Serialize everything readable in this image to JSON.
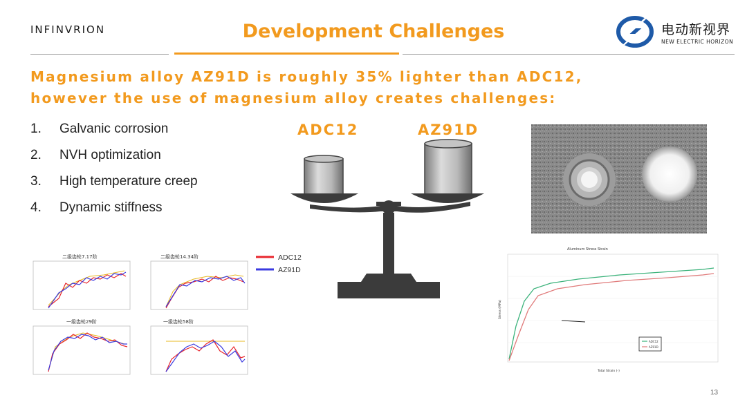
{
  "header": {
    "brand_left": "INFINVRION",
    "title": "Development Challenges",
    "brand_right_cn": "电动新视界",
    "brand_right_en": "NEW ELECTRIC HORIZON"
  },
  "subtitle_line1": "Magnesium alloy AZ91D is roughly 35% lighter than ADC12,",
  "subtitle_line2": "however the use of magnesium alloy creates challenges:",
  "challenges": [
    {
      "num": "1.",
      "text": "Galvanic corrosion"
    },
    {
      "num": "2.",
      "text": "NVH optimization"
    },
    {
      "num": "3.",
      "text": "High temperature creep"
    },
    {
      "num": "4.",
      "text": "Dynamic stiffness"
    }
  ],
  "scale": {
    "left_label": "ADC12",
    "right_label": "AZ91D"
  },
  "nvh_charts": {
    "panel_titles": [
      "二级齿轮7.17阶",
      "二级齿轮14.34阶",
      "一级齿轮29阶",
      "一级齿轮58阶"
    ],
    "legend": [
      {
        "name": "ADC12",
        "color": "#e8262d"
      },
      {
        "name": "AZ91D",
        "color": "#3a3ae0"
      }
    ]
  },
  "stress_chart": {
    "title": "Aluminum Stress Strain",
    "xlabel": "Total Strain (-)",
    "ylabel": "Stress (MPa)",
    "legend": [
      "ADC12",
      "AZ91D"
    ]
  },
  "colors": {
    "accent": "#f29a1e",
    "scale": "#3b3b3b"
  },
  "page_number": "13"
}
